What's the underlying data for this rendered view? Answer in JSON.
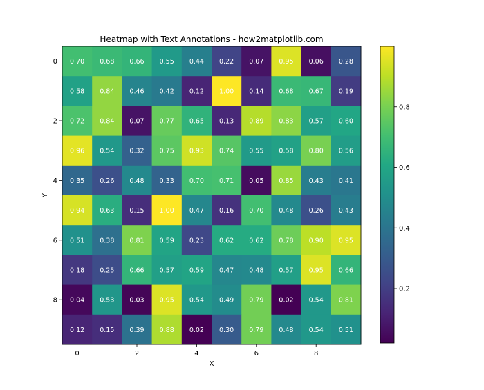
{
  "chart_data": {
    "type": "heatmap",
    "title": "Heatmap with Text Annotations - how2matplotlib.com",
    "xlabel": "X",
    "ylabel": "Y",
    "x_ticks": [
      "0",
      "2",
      "4",
      "6",
      "8"
    ],
    "y_ticks": [
      "0",
      "2",
      "4",
      "6",
      "8"
    ],
    "colormap": "viridis",
    "colorbar": {
      "ticks": [
        "0.2",
        "0.4",
        "0.6",
        "0.8"
      ],
      "tick_values": [
        0.2,
        0.4,
        0.6,
        0.8
      ],
      "vmin": 0.02,
      "vmax": 1.0
    },
    "values": [
      [
        0.7,
        0.68,
        0.66,
        0.55,
        0.44,
        0.22,
        0.07,
        0.95,
        0.06,
        0.28
      ],
      [
        0.58,
        0.84,
        0.46,
        0.42,
        0.12,
        1.0,
        0.14,
        0.68,
        0.67,
        0.19
      ],
      [
        0.72,
        0.84,
        0.07,
        0.77,
        0.65,
        0.13,
        0.89,
        0.83,
        0.57,
        0.6
      ],
      [
        0.96,
        0.54,
        0.32,
        0.75,
        0.93,
        0.74,
        0.55,
        0.58,
        0.8,
        0.56
      ],
      [
        0.35,
        0.26,
        0.48,
        0.33,
        0.7,
        0.71,
        0.05,
        0.85,
        0.43,
        0.41
      ],
      [
        0.94,
        0.63,
        0.15,
        1.0,
        0.47,
        0.16,
        0.7,
        0.48,
        0.26,
        0.43
      ],
      [
        0.51,
        0.38,
        0.81,
        0.59,
        0.23,
        0.62,
        0.62,
        0.78,
        0.9,
        0.95
      ],
      [
        0.18,
        0.25,
        0.66,
        0.57,
        0.59,
        0.47,
        0.48,
        0.57,
        0.95,
        0.66
      ],
      [
        0.04,
        0.53,
        0.03,
        0.95,
        0.54,
        0.49,
        0.79,
        0.02,
        0.54,
        0.81
      ],
      [
        0.12,
        0.15,
        0.39,
        0.88,
        0.02,
        0.3,
        0.79,
        0.48,
        0.54,
        0.51
      ]
    ],
    "labels": [
      [
        "0.70",
        "0.68",
        "0.66",
        "0.55",
        "0.44",
        "0.22",
        "0.07",
        "0.95",
        "0.06",
        "0.28"
      ],
      [
        "0.58",
        "0.84",
        "0.46",
        "0.42",
        "0.12",
        "1.00",
        "0.14",
        "0.68",
        "0.67",
        "0.19"
      ],
      [
        "0.72",
        "0.84",
        "0.07",
        "0.77",
        "0.65",
        "0.13",
        "0.89",
        "0.83",
        "0.57",
        "0.60"
      ],
      [
        "0.96",
        "0.54",
        "0.32",
        "0.75",
        "0.93",
        "0.74",
        "0.55",
        "0.58",
        "0.80",
        "0.56"
      ],
      [
        "0.35",
        "0.26",
        "0.48",
        "0.33",
        "0.70",
        "0.71",
        "0.05",
        "0.85",
        "0.43",
        "0.41"
      ],
      [
        "0.94",
        "0.63",
        "0.15",
        "1.00",
        "0.47",
        "0.16",
        "0.70",
        "0.48",
        "0.26",
        "0.43"
      ],
      [
        "0.51",
        "0.38",
        "0.81",
        "0.59",
        "0.23",
        "0.62",
        "0.62",
        "0.78",
        "0.90",
        "0.95"
      ],
      [
        "0.18",
        "0.25",
        "0.66",
        "0.57",
        "0.59",
        "0.47",
        "0.48",
        "0.57",
        "0.95",
        "0.66"
      ],
      [
        "0.04",
        "0.53",
        "0.03",
        "0.95",
        "0.54",
        "0.49",
        "0.79",
        "0.02",
        "0.54",
        "0.81"
      ],
      [
        "0.12",
        "0.15",
        "0.39",
        "0.88",
        "0.02",
        "0.30",
        "0.79",
        "0.48",
        "0.54",
        "0.51"
      ]
    ],
    "annotation_color": "#ffffff",
    "legend": "colorbar-right"
  }
}
